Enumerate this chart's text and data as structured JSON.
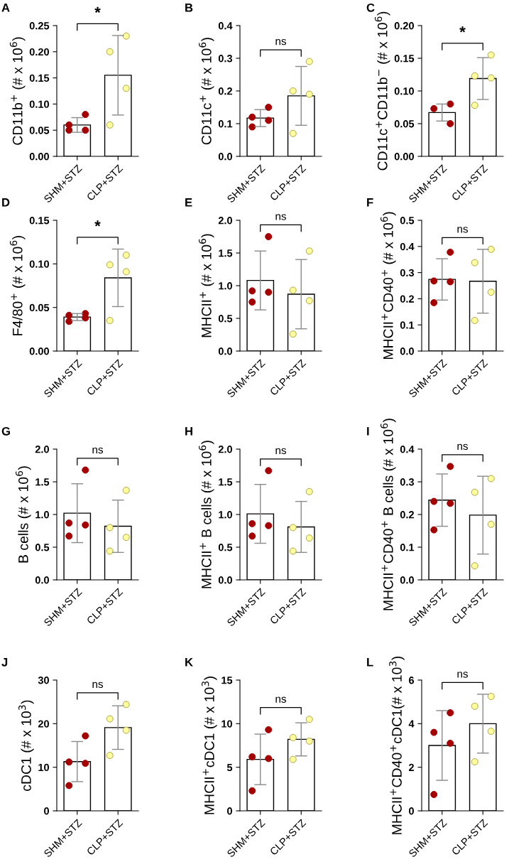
{
  "chart_data": [
    {
      "type": "bar",
      "title": "A",
      "ylabel": "CD11b$^{+}$ (# x 10$^{6}$)",
      "categories": [
        "SHM+STZ",
        "CLP+STZ"
      ],
      "ylim": [
        0,
        0.25
      ],
      "yticks": [
        {
          "value": 0,
          "label": "0.00"
        },
        {
          "value": 0.05,
          "label": "0.05"
        },
        {
          "value": 0.1,
          "label": "0.10"
        },
        {
          "value": 0.15,
          "label": "0.15"
        },
        {
          "value": 0.2,
          "label": "0.20"
        },
        {
          "value": 0.25,
          "label": "0.25"
        }
      ],
      "annotations": [
        "*"
      ],
      "series": [
        {
          "type": "bar",
          "colors": [
            "#ffffff",
            "#ffffff"
          ],
          "values": [
            0.06,
            0.155
          ],
          "errors": [
            0.014,
            0.076
          ]
        },
        {
          "type": "scatter",
          "color": "#a50000",
          "x": [
            "SHM+STZ",
            "SHM+STZ",
            "SHM+STZ",
            "SHM+STZ"
          ],
          "values": [
            0.08,
            0.06,
            0.05,
            0.05
          ]
        },
        {
          "type": "scatter",
          "color": "#ffffa0",
          "x": [
            "CLP+STZ",
            "CLP+STZ",
            "CLP+STZ",
            "CLP+STZ"
          ],
          "values": [
            0.23,
            0.2,
            0.13,
            0.06
          ]
        }
      ]
    },
    {
      "type": "bar",
      "title": "B",
      "ylabel": "CD11c$^{+}$ (# x 10$^{6}$)",
      "categories": [
        "SHM+STZ",
        "CLP+STZ"
      ],
      "ylim": [
        0,
        0.4
      ],
      "yticks": [
        {
          "value": 0,
          "label": "0.0"
        },
        {
          "value": 0.1,
          "label": "0.1"
        },
        {
          "value": 0.2,
          "label": "0.2"
        },
        {
          "value": 0.3,
          "label": "0.3"
        },
        {
          "value": 0.4,
          "label": "0.4"
        }
      ],
      "annotations": [
        "ns"
      ],
      "series": [
        {
          "type": "bar",
          "colors": [
            "#ffffff",
            "#ffffff"
          ],
          "values": [
            0.117,
            0.185
          ],
          "errors": [
            0.026,
            0.09
          ]
        },
        {
          "type": "scatter",
          "color": "#a50000",
          "x": [
            "SHM+STZ",
            "SHM+STZ",
            "SHM+STZ",
            "SHM+STZ"
          ],
          "values": [
            0.15,
            0.12,
            0.11,
            0.09
          ]
        },
        {
          "type": "scatter",
          "color": "#ffffa0",
          "x": [
            "CLP+STZ",
            "CLP+STZ",
            "CLP+STZ",
            "CLP+STZ"
          ],
          "values": [
            0.29,
            0.2,
            0.19,
            0.07
          ]
        }
      ]
    },
    {
      "type": "bar",
      "title": "C",
      "ylabel": "CD11c$^{+}$CD11b$^{−}$ (# x 10$^{6}$)",
      "categories": [
        "SHM+STZ",
        "CLP+STZ"
      ],
      "ylim": [
        0,
        0.2
      ],
      "yticks": [
        {
          "value": 0,
          "label": "0.00"
        },
        {
          "value": 0.05,
          "label": "0.05"
        },
        {
          "value": 0.1,
          "label": "0.10"
        },
        {
          "value": 0.15,
          "label": "0.15"
        },
        {
          "value": 0.2,
          "label": "0.20"
        }
      ],
      "annotations": [
        "*"
      ],
      "series": [
        {
          "type": "bar",
          "colors": [
            "#ffffff",
            "#ffffff"
          ],
          "values": [
            0.067,
            0.119
          ],
          "errors": [
            0.013,
            0.032
          ]
        },
        {
          "type": "scatter",
          "color": "#a50000",
          "x": [
            "SHM+STZ",
            "SHM+STZ",
            "SHM+STZ"
          ],
          "values": [
            0.08,
            0.073,
            0.05
          ]
        },
        {
          "type": "scatter",
          "color": "#ffffa0",
          "x": [
            "CLP+STZ",
            "CLP+STZ",
            "CLP+STZ",
            "CLP+STZ"
          ],
          "values": [
            0.155,
            0.123,
            0.12,
            0.078
          ]
        }
      ]
    },
    {
      "type": "bar",
      "title": "D",
      "ylabel": "F4/80$^{+}$ (# x 10$^{6}$)",
      "categories": [
        "SHM+STZ",
        "CLP+STZ"
      ],
      "ylim": [
        0,
        0.15
      ],
      "yticks": [
        {
          "value": 0,
          "label": "0.00"
        },
        {
          "value": 0.05,
          "label": "0.05"
        },
        {
          "value": 0.1,
          "label": "0.10"
        },
        {
          "value": 0.15,
          "label": "0.15"
        }
      ],
      "annotations": [
        "*"
      ],
      "series": [
        {
          "type": "bar",
          "colors": [
            "#ffffff",
            "#ffffff"
          ],
          "values": [
            0.039,
            0.084
          ],
          "errors": [
            0.004,
            0.033
          ]
        },
        {
          "type": "scatter",
          "color": "#a50000",
          "x": [
            "SHM+STZ",
            "SHM+STZ",
            "SHM+STZ",
            "SHM+STZ"
          ],
          "values": [
            0.043,
            0.041,
            0.038,
            0.034
          ]
        },
        {
          "type": "scatter",
          "color": "#ffffa0",
          "x": [
            "CLP+STZ",
            "CLP+STZ",
            "CLP+STZ",
            "CLP+STZ"
          ],
          "values": [
            0.11,
            0.099,
            0.091,
            0.035
          ]
        }
      ]
    },
    {
      "type": "bar",
      "title": "E",
      "ylabel": "MHCII$^{+}$ (# x 10$^{6}$)",
      "categories": [
        "SHM+STZ",
        "CLP+STZ"
      ],
      "ylim": [
        0,
        2.0
      ],
      "yticks": [
        {
          "value": 0,
          "label": "0.0"
        },
        {
          "value": 0.5,
          "label": "0.5"
        },
        {
          "value": 1,
          "label": "1.0"
        },
        {
          "value": 1.5,
          "label": "1.5"
        },
        {
          "value": 2,
          "label": "2.0"
        }
      ],
      "annotations": [
        "ns"
      ],
      "series": [
        {
          "type": "bar",
          "colors": [
            "#ffffff",
            "#ffffff"
          ],
          "values": [
            1.08,
            0.87
          ],
          "errors": [
            0.45,
            0.53
          ]
        },
        {
          "type": "scatter",
          "color": "#a50000",
          "x": [
            "SHM+STZ",
            "SHM+STZ",
            "SHM+STZ",
            "SHM+STZ"
          ],
          "values": [
            1.75,
            0.92,
            0.9,
            0.75
          ]
        },
        {
          "type": "scatter",
          "color": "#ffffa0",
          "x": [
            "CLP+STZ",
            "CLP+STZ",
            "CLP+STZ",
            "CLP+STZ"
          ],
          "values": [
            1.53,
            0.93,
            0.77,
            0.26
          ]
        }
      ]
    },
    {
      "type": "bar",
      "title": "F",
      "ylabel": "MHCII$^{+}$CD40$^{+}$ (# x 10$^{6}$)",
      "categories": [
        "SHM+STZ",
        "CLP+STZ"
      ],
      "ylim": [
        0,
        0.5
      ],
      "yticks": [
        {
          "value": 0,
          "label": "0.0"
        },
        {
          "value": 0.1,
          "label": "0.1"
        },
        {
          "value": 0.2,
          "label": "0.2"
        },
        {
          "value": 0.3,
          "label": "0.3"
        },
        {
          "value": 0.4,
          "label": "0.4"
        },
        {
          "value": 0.5,
          "label": "0.5"
        }
      ],
      "annotations": [
        "ns"
      ],
      "series": [
        {
          "type": "bar",
          "colors": [
            "#ffffff",
            "#ffffff"
          ],
          "values": [
            0.274,
            0.267
          ],
          "errors": [
            0.079,
            0.122
          ]
        },
        {
          "type": "scatter",
          "color": "#a50000",
          "x": [
            "SHM+STZ",
            "SHM+STZ",
            "SHM+STZ",
            "SHM+STZ"
          ],
          "values": [
            0.378,
            0.268,
            0.265,
            0.185
          ]
        },
        {
          "type": "scatter",
          "color": "#ffffa0",
          "x": [
            "CLP+STZ",
            "CLP+STZ",
            "CLP+STZ",
            "CLP+STZ"
          ],
          "values": [
            0.389,
            0.338,
            0.225,
            0.117
          ]
        }
      ]
    },
    {
      "type": "bar",
      "title": "G",
      "ylabel": "B cells (# x 10$^{6}$)",
      "categories": [
        "SHM+STZ",
        "CLP+STZ"
      ],
      "ylim": [
        0,
        2.0
      ],
      "yticks": [
        {
          "value": 0,
          "label": "0.0"
        },
        {
          "value": 0.5,
          "label": "0.5"
        },
        {
          "value": 1,
          "label": "1.0"
        },
        {
          "value": 1.5,
          "label": "1.5"
        },
        {
          "value": 2,
          "label": "2.0"
        }
      ],
      "annotations": [
        "ns"
      ],
      "series": [
        {
          "type": "bar",
          "colors": [
            "#ffffff",
            "#ffffff"
          ],
          "values": [
            1.02,
            0.82
          ],
          "errors": [
            0.45,
            0.4
          ]
        },
        {
          "type": "scatter",
          "color": "#a50000",
          "x": [
            "SHM+STZ",
            "SHM+STZ",
            "SHM+STZ",
            "SHM+STZ"
          ],
          "values": [
            1.68,
            0.87,
            0.84,
            0.67
          ]
        },
        {
          "type": "scatter",
          "color": "#ffffa0",
          "x": [
            "CLP+STZ",
            "CLP+STZ",
            "CLP+STZ",
            "CLP+STZ"
          ],
          "values": [
            1.37,
            0.8,
            0.65,
            0.44
          ]
        }
      ]
    },
    {
      "type": "bar",
      "title": "H",
      "ylabel": "MHCII$^{+}$ B cells (# x 10$^{6}$)",
      "categories": [
        "SHM+STZ",
        "CLP+STZ"
      ],
      "ylim": [
        0,
        2.0
      ],
      "yticks": [
        {
          "value": 0,
          "label": "0.0"
        },
        {
          "value": 0.5,
          "label": "0.5"
        },
        {
          "value": 1,
          "label": "1.0"
        },
        {
          "value": 1.5,
          "label": "1.5"
        },
        {
          "value": 2,
          "label": "2.0"
        }
      ],
      "annotations": [
        "ns"
      ],
      "series": [
        {
          "type": "bar",
          "colors": [
            "#ffffff",
            "#ffffff"
          ],
          "values": [
            1.01,
            0.81
          ],
          "errors": [
            0.45,
            0.39
          ]
        },
        {
          "type": "scatter",
          "color": "#a50000",
          "x": [
            "SHM+STZ",
            "SHM+STZ",
            "SHM+STZ",
            "SHM+STZ"
          ],
          "values": [
            1.67,
            0.86,
            0.83,
            0.67
          ]
        },
        {
          "type": "scatter",
          "color": "#ffffa0",
          "x": [
            "CLP+STZ",
            "CLP+STZ",
            "CLP+STZ",
            "CLP+STZ"
          ],
          "values": [
            1.35,
            0.8,
            0.64,
            0.44
          ]
        }
      ]
    },
    {
      "type": "bar",
      "title": "I",
      "ylabel": "MHCII$^{+}$CD40$^{+}$ B cells (# x 10$^{6}$)",
      "categories": [
        "SHM+STZ",
        "CLP+STZ"
      ],
      "ylim": [
        0,
        0.4
      ],
      "yticks": [
        {
          "value": 0,
          "label": "0.0"
        },
        {
          "value": 0.1,
          "label": "0.1"
        },
        {
          "value": 0.2,
          "label": "0.2"
        },
        {
          "value": 0.3,
          "label": "0.3"
        },
        {
          "value": 0.4,
          "label": "0.4"
        }
      ],
      "annotations": [
        "ns"
      ],
      "series": [
        {
          "type": "bar",
          "colors": [
            "#ffffff",
            "#ffffff"
          ],
          "values": [
            0.244,
            0.198
          ],
          "errors": [
            0.08,
            0.119
          ]
        },
        {
          "type": "scatter",
          "color": "#a50000",
          "x": [
            "SHM+STZ",
            "SHM+STZ",
            "SHM+STZ",
            "SHM+STZ"
          ],
          "values": [
            0.347,
            0.24,
            0.234,
            0.153
          ]
        },
        {
          "type": "scatter",
          "color": "#ffffa0",
          "x": [
            "CLP+STZ",
            "CLP+STZ",
            "CLP+STZ",
            "CLP+STZ"
          ],
          "values": [
            0.31,
            0.268,
            0.17,
            0.043
          ]
        }
      ]
    },
    {
      "type": "bar",
      "title": "J",
      "ylabel": "cDC1 (# x 10$^{3}$)",
      "categories": [
        "SHM+STZ",
        "CLP+STZ"
      ],
      "ylim": [
        0,
        30
      ],
      "yticks": [
        0,
        10,
        20,
        30
      ],
      "annotations": [
        "ns"
      ],
      "series": [
        {
          "type": "bar",
          "colors": [
            "#ffffff",
            "#ffffff"
          ],
          "values": [
            11.3,
            19.1
          ],
          "errors": [
            4.6,
            5.0
          ]
        },
        {
          "type": "scatter",
          "color": "#a50000",
          "x": [
            "SHM+STZ",
            "SHM+STZ",
            "SHM+STZ",
            "SHM+STZ"
          ],
          "values": [
            17.2,
            11.2,
            10.9,
            5.8
          ]
        },
        {
          "type": "scatter",
          "color": "#ffffa0",
          "x": [
            "CLP+STZ",
            "CLP+STZ",
            "CLP+STZ",
            "CLP+STZ"
          ],
          "values": [
            24.4,
            21.1,
            18.5,
            12.7
          ]
        }
      ]
    },
    {
      "type": "bar",
      "title": "K",
      "ylabel": "MHCII$^{+}$cDC1 (# x 10$^{3}$)",
      "categories": [
        "SHM+STZ",
        "CLP+STZ"
      ],
      "ylim": [
        0,
        15
      ],
      "yticks": [
        0,
        5,
        10,
        15
      ],
      "annotations": [
        "ns"
      ],
      "series": [
        {
          "type": "bar",
          "colors": [
            "#ffffff",
            "#ffffff"
          ],
          "values": [
            5.9,
            8.2
          ],
          "errors": [
            2.9,
            1.9
          ]
        },
        {
          "type": "scatter",
          "color": "#a50000",
          "x": [
            "SHM+STZ",
            "SHM+STZ",
            "SHM+STZ",
            "SHM+STZ"
          ],
          "values": [
            9.3,
            6.2,
            6.0,
            2.3
          ]
        },
        {
          "type": "scatter",
          "color": "#ffffa0",
          "x": [
            "CLP+STZ",
            "CLP+STZ",
            "CLP+STZ",
            "CLP+STZ"
          ],
          "values": [
            10.5,
            8.4,
            8.0,
            5.9
          ]
        }
      ]
    },
    {
      "type": "bar",
      "title": "L",
      "ylabel": "MHCII$^{+}$CD40$^{+}$cDC1(# x 10$^{3}$)",
      "categories": [
        "SHM+STZ",
        "CLP+STZ"
      ],
      "ylim": [
        0,
        6
      ],
      "yticks": [
        0,
        2,
        4,
        6
      ],
      "annotations": [
        "ns"
      ],
      "series": [
        {
          "type": "bar",
          "colors": [
            "#ffffff",
            "#ffffff"
          ],
          "values": [
            3.0,
            4.0
          ],
          "errors": [
            1.6,
            1.35
          ]
        },
        {
          "type": "scatter",
          "color": "#a50000",
          "x": [
            "SHM+STZ",
            "SHM+STZ",
            "SHM+STZ",
            "SHM+STZ"
          ],
          "values": [
            4.5,
            3.6,
            3.1,
            0.75
          ]
        },
        {
          "type": "scatter",
          "color": "#ffffa0",
          "x": [
            "CLP+STZ",
            "CLP+STZ",
            "CLP+STZ",
            "CLP+STZ"
          ],
          "values": [
            5.25,
            4.8,
            3.65,
            2.25
          ]
        }
      ]
    }
  ]
}
